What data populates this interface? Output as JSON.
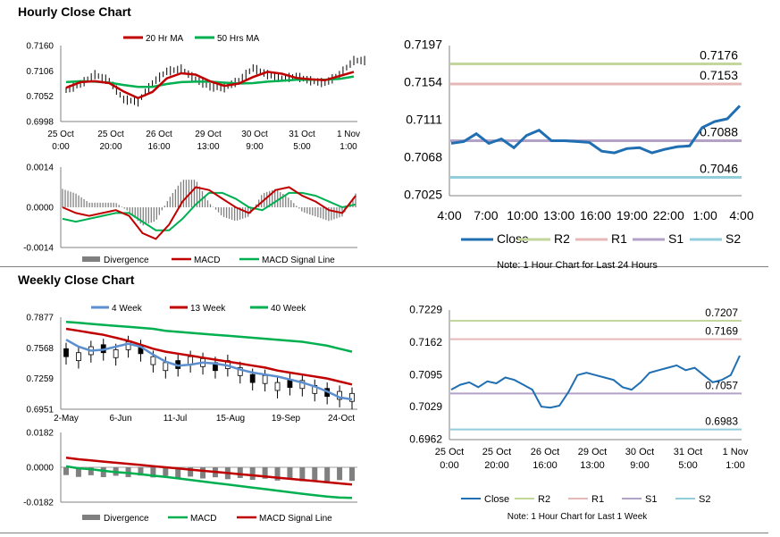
{
  "sections": {
    "hourly_title": "Hourly Close Chart",
    "weekly_title": "Weekly Close Chart"
  },
  "colors": {
    "red": "#c00000",
    "green": "#00b050",
    "blue": "#1f6fb2",
    "gray": "#7f7f7f",
    "r2": "#c3d69b",
    "r1": "#e6b9b8",
    "s1": "#b3a2c7",
    "s2": "#92cddc"
  },
  "chart_data": [
    {
      "id": "hourly-price",
      "type": "line",
      "legend": [
        "20 Hr MA",
        "50 Hrs MA"
      ],
      "yticks": [
        "0.7160",
        "0.7106",
        "0.7052",
        "0.6998"
      ],
      "ylim": [
        0.6998,
        0.716
      ],
      "xticks": [
        [
          "25 Oct",
          "0:00"
        ],
        [
          "25 Oct",
          "20:00"
        ],
        [
          "26 Oct",
          "16:00"
        ],
        [
          "29 Oct",
          "13:00"
        ],
        [
          "30 Oct",
          "9:00"
        ],
        [
          "31 Oct",
          "5:00"
        ],
        [
          "1 Nov",
          "1:00"
        ]
      ],
      "series": [
        {
          "name": "20 Hr MA",
          "values": [
            7070,
            7082,
            7084,
            7080,
            7062,
            7048,
            7061,
            7090,
            7101,
            7098,
            7084,
            7074,
            7079,
            7093,
            7104,
            7100,
            7091,
            7088,
            7086,
            7095,
            7104
          ]
        },
        {
          "name": "50 Hrs MA",
          "values": [
            7082,
            7084,
            7083,
            7081,
            7076,
            7072,
            7072,
            7078,
            7082,
            7083,
            7083,
            7081,
            7079,
            7080,
            7083,
            7085,
            7087,
            7087,
            7087,
            7089,
            7094
          ]
        }
      ],
      "close": [
        7065,
        7078,
        7098,
        7085,
        7045,
        7040,
        7080,
        7105,
        7110,
        7088,
        7072,
        7070,
        7085,
        7112,
        7098,
        7090,
        7094,
        7085,
        7080,
        7098,
        7128
      ]
    },
    {
      "id": "hourly-macd",
      "type": "line",
      "legend": [
        "Divergence",
        "MACD",
        "MACD Signal Line"
      ],
      "yticks": [
        "0.0014",
        "0.0000",
        "-0.0014"
      ],
      "ylim": [
        -0.0014,
        0.0014
      ],
      "series": [
        {
          "name": "MACD",
          "values": [
            0.0,
            -0.0002,
            -0.0003,
            -0.0002,
            -0.0001,
            -0.0003,
            -0.0009,
            -0.0011,
            -0.0006,
            0.0002,
            0.0007,
            0.0006,
            0.0003,
            0.0,
            -0.0002,
            0.0002,
            0.0006,
            0.0007,
            0.0004,
            0.0002,
            -0.0001,
            -0.0002,
            0.0004
          ]
        },
        {
          "name": "MACD Signal Line",
          "values": [
            -0.0004,
            -0.0005,
            -0.0004,
            -0.0003,
            -0.0002,
            -0.0002,
            -0.0005,
            -0.0008,
            -0.0008,
            -0.0004,
            0.0001,
            0.0005,
            0.0005,
            0.0003,
            0.0,
            -0.0001,
            0.0002,
            0.0005,
            0.0005,
            0.0004,
            0.0002,
            0.0,
            0.0001
          ]
        }
      ]
    },
    {
      "id": "hourly-levels",
      "type": "line",
      "yticks": [
        "0.7197",
        "0.7154",
        "0.7111",
        "0.7068",
        "0.7025"
      ],
      "ylim": [
        0.7025,
        0.7197
      ],
      "xticks": [
        "4:00",
        "7:00",
        "10:00",
        "13:00",
        "16:00",
        "19:00",
        "22:00",
        "1:00",
        "4:00"
      ],
      "levels": [
        {
          "name": "R2",
          "value": 0.7176,
          "label": "0.7176"
        },
        {
          "name": "R1",
          "value": 0.7153,
          "label": "0.7153"
        },
        {
          "name": "S1",
          "value": 0.7088,
          "label": "0.7088"
        },
        {
          "name": "S2",
          "value": 0.7046,
          "label": "0.7046"
        }
      ],
      "legend": [
        "Close",
        "R2",
        "R1",
        "S1",
        "S2"
      ],
      "note": "Note: 1 Hour Chart for Last 24 Hours",
      "close": [
        0.7085,
        0.7087,
        0.7096,
        0.7085,
        0.709,
        0.708,
        0.7094,
        0.71,
        0.7088,
        0.7088,
        0.7087,
        0.7086,
        0.7076,
        0.7074,
        0.7079,
        0.708,
        0.7074,
        0.7078,
        0.7081,
        0.7082,
        0.7103,
        0.711,
        0.7113,
        0.7128
      ]
    },
    {
      "id": "weekly-price",
      "type": "line",
      "legend": [
        "4 Week",
        "13 Week",
        "40 Week"
      ],
      "yticks": [
        "0.7877",
        "0.7568",
        "0.7259",
        "0.6951"
      ],
      "ylim": [
        0.6951,
        0.7877
      ],
      "xticks": [
        "2-May",
        "6-Jun",
        "11-Jul",
        "15-Aug",
        "19-Sep",
        "24-Oct"
      ],
      "series": [
        {
          "name": "4 Week",
          "values": [
            0.765,
            0.758,
            0.754,
            0.755,
            0.758,
            0.761,
            0.758,
            0.75,
            0.743,
            0.739,
            0.74,
            0.742,
            0.741,
            0.739,
            0.735,
            0.732,
            0.73,
            0.728,
            0.725,
            0.722,
            0.718,
            0.713,
            0.707,
            0.705
          ]
        },
        {
          "name": "13 Week",
          "values": [
            0.776,
            0.774,
            0.772,
            0.77,
            0.767,
            0.764,
            0.76,
            0.756,
            0.753,
            0.751,
            0.749,
            0.747,
            0.745,
            0.743,
            0.741,
            0.739,
            0.737,
            0.734,
            0.732,
            0.73,
            0.728,
            0.726,
            0.723,
            0.72
          ]
        },
        {
          "name": "40 Week",
          "values": [
            0.783,
            0.782,
            0.781,
            0.78,
            0.779,
            0.778,
            0.777,
            0.776,
            0.774,
            0.773,
            0.772,
            0.771,
            0.77,
            0.769,
            0.768,
            0.767,
            0.766,
            0.765,
            0.764,
            0.763,
            0.761,
            0.759,
            0.756,
            0.753
          ]
        }
      ],
      "close": [
        0.752,
        0.748,
        0.754,
        0.756,
        0.751,
        0.759,
        0.755,
        0.744,
        0.738,
        0.74,
        0.744,
        0.742,
        0.738,
        0.74,
        0.733,
        0.726,
        0.725,
        0.718,
        0.721,
        0.72,
        0.715,
        0.712,
        0.709,
        0.707
      ]
    },
    {
      "id": "weekly-macd",
      "type": "line",
      "legend": [
        "Divergence",
        "MACD",
        "MACD Signal Line"
      ],
      "yticks": [
        "0.0182",
        "0.0000",
        "-0.0182"
      ],
      "ylim": [
        -0.0182,
        0.0182
      ],
      "series": [
        {
          "name": "MACD",
          "values": [
            0.0005,
            -0.0005,
            -0.001,
            -0.0018,
            -0.0025,
            -0.003,
            -0.0036,
            -0.0044,
            -0.005,
            -0.0058,
            -0.0066,
            -0.0074,
            -0.0082,
            -0.009,
            -0.0098,
            -0.0106,
            -0.0114,
            -0.0122,
            -0.013,
            -0.0138,
            -0.0146,
            -0.0153,
            -0.0158,
            -0.016
          ]
        },
        {
          "name": "MACD Signal Line",
          "values": [
            0.005,
            0.0042,
            0.0036,
            0.003,
            0.0024,
            0.0018,
            0.0012,
            0.0006,
            0.0,
            -0.0006,
            -0.0012,
            -0.0018,
            -0.0024,
            -0.003,
            -0.0036,
            -0.0042,
            -0.0048,
            -0.0054,
            -0.006,
            -0.0066,
            -0.0072,
            -0.0078,
            -0.0084,
            -0.009
          ]
        }
      ]
    },
    {
      "id": "weekly-levels",
      "type": "line",
      "yticks": [
        "0.7229",
        "0.7162",
        "0.7095",
        "0.7029",
        "0.6962"
      ],
      "ylim": [
        0.6962,
        0.7229
      ],
      "xticks": [
        [
          "25 Oct",
          "0:00"
        ],
        [
          "25 Oct",
          "20:00"
        ],
        [
          "26 Oct",
          "16:00"
        ],
        [
          "29 Oct",
          "13:00"
        ],
        [
          "30 Oct",
          "9:00"
        ],
        [
          "31 Oct",
          "5:00"
        ],
        [
          "1 Nov",
          "1:00"
        ]
      ],
      "levels": [
        {
          "name": "R2",
          "value": 0.7207,
          "label": "0.7207"
        },
        {
          "name": "R1",
          "value": 0.7169,
          "label": "0.7169"
        },
        {
          "name": "S1",
          "value": 0.7057,
          "label": "0.7057"
        },
        {
          "name": "S2",
          "value": 0.6983,
          "label": "0.6983"
        }
      ],
      "legend": [
        "Close",
        "R2",
        "R1",
        "S1",
        "S2"
      ],
      "note": "Note: 1 Hour Chart for Last 1 Week",
      "close": [
        0.7065,
        0.7075,
        0.708,
        0.707,
        0.7082,
        0.7078,
        0.709,
        0.7085,
        0.7075,
        0.7065,
        0.703,
        0.7028,
        0.7032,
        0.706,
        0.7095,
        0.71,
        0.7095,
        0.709,
        0.7085,
        0.707,
        0.7065,
        0.708,
        0.71,
        0.7105,
        0.711,
        0.7115,
        0.7105,
        0.711,
        0.7095,
        0.708,
        0.7085,
        0.7095,
        0.7135
      ]
    }
  ]
}
